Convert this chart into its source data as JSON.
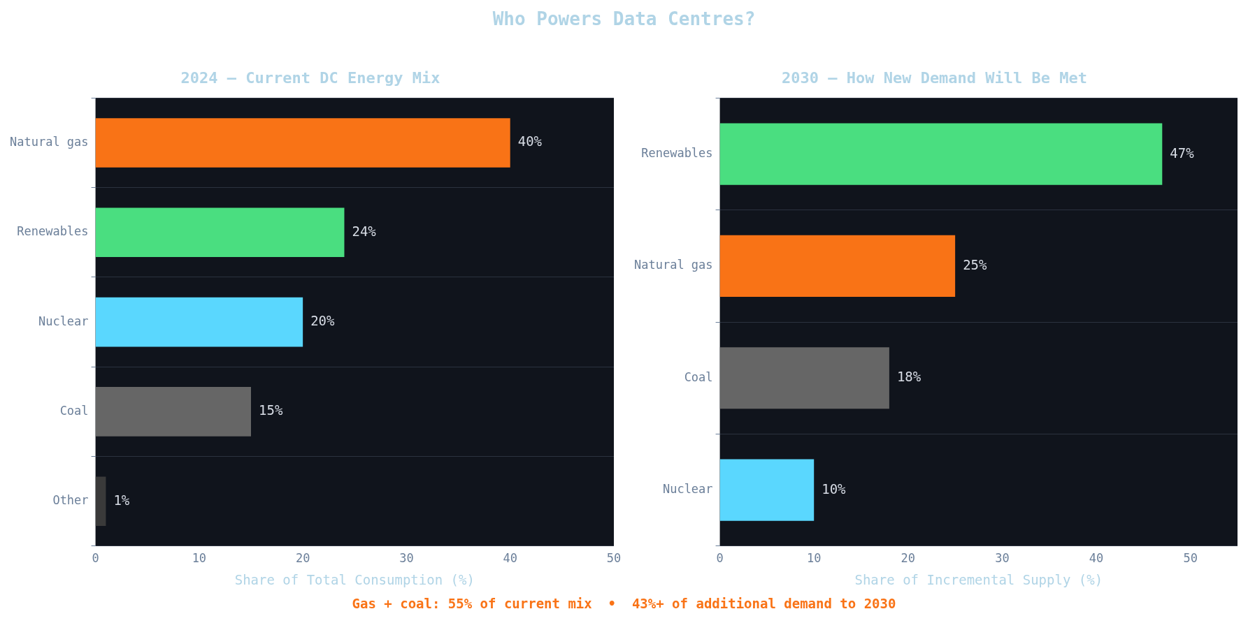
{
  "chart_data": [
    {
      "type": "bar",
      "orientation": "horizontal",
      "title": "2024 — Current DC Energy Mix",
      "xlabel": "Share of Total Consumption (%)",
      "categories": [
        "Natural gas",
        "Renewables",
        "Nuclear",
        "Coal",
        "Other"
      ],
      "values": [
        40,
        24,
        20,
        15,
        1
      ],
      "colors": [
        "#f97316",
        "#4ade80",
        "#5ad7fe",
        "#666666",
        "#3a3a3a"
      ],
      "value_labels": [
        "40%",
        "24%",
        "20%",
        "15%",
        "1%"
      ],
      "xlim": [
        0,
        50
      ],
      "xticks": [
        0,
        10,
        20,
        30,
        40,
        50
      ],
      "grid": "y",
      "annotations": [
        "Who Powers Data Centres?"
      ]
    },
    {
      "type": "bar",
      "orientation": "horizontal",
      "title": "2030 — How New Demand Will Be Met",
      "xlabel": "Share of Incremental Supply (%)",
      "categories": [
        "Renewables",
        "Natural gas",
        "Coal",
        "Nuclear"
      ],
      "values": [
        47,
        25,
        18,
        10
      ],
      "colors": [
        "#4ade80",
        "#f97316",
        "#666666",
        "#5ad7fe"
      ],
      "value_labels": [
        "47%",
        "25%",
        "18%",
        "10%"
      ],
      "xlim": [
        0,
        55
      ],
      "xticks": [
        0,
        10,
        20,
        30,
        40,
        50
      ],
      "grid": "y",
      "annotations": [
        "Gas + coal: 55% of current mix  •  43%+ of additional demand to 2030"
      ]
    }
  ]
}
